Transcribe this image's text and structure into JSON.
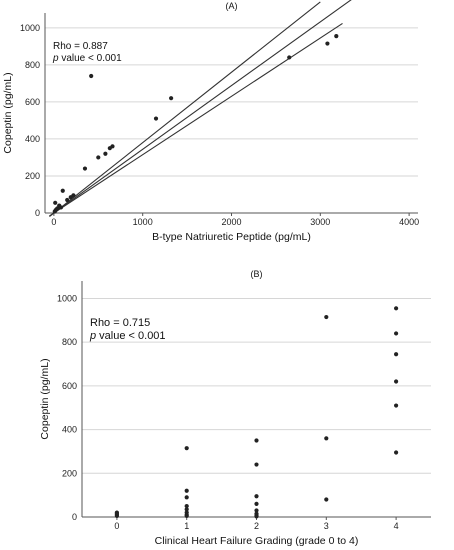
{
  "chart_data": [
    {
      "type": "scatter",
      "panel_label": "(A)",
      "xlabel": "B-type Natriuretic Peptide (pg/mL)",
      "ylabel": "Copeptin  (pg/mL)",
      "xlim": [
        -100,
        4100
      ],
      "ylim": [
        0,
        1080
      ],
      "xticks": [
        0,
        1000,
        2000,
        3000,
        4000
      ],
      "yticks": [
        0,
        200,
        400,
        600,
        800,
        1000
      ],
      "grid": "horizontal",
      "annotation": {
        "rho": "Rho = 0.887",
        "p_italic": "p",
        "p_rest": " value < 0.001"
      },
      "points": [
        {
          "x": 10,
          "y": 8
        },
        {
          "x": 20,
          "y": 15
        },
        {
          "x": 30,
          "y": 20
        },
        {
          "x": 40,
          "y": 25
        },
        {
          "x": 15,
          "y": 55
        },
        {
          "x": 60,
          "y": 40
        },
        {
          "x": 80,
          "y": 30
        },
        {
          "x": 100,
          "y": 120
        },
        {
          "x": 150,
          "y": 70
        },
        {
          "x": 190,
          "y": 85
        },
        {
          "x": 220,
          "y": 95
        },
        {
          "x": 350,
          "y": 240
        },
        {
          "x": 420,
          "y": 740
        },
        {
          "x": 500,
          "y": 300
        },
        {
          "x": 580,
          "y": 320
        },
        {
          "x": 630,
          "y": 350
        },
        {
          "x": 660,
          "y": 360
        },
        {
          "x": 1150,
          "y": 510
        },
        {
          "x": 1320,
          "y": 620
        },
        {
          "x": 2650,
          "y": 840
        },
        {
          "x": 3080,
          "y": 915
        },
        {
          "x": 3180,
          "y": 955
        }
      ],
      "fit": {
        "slope": 0.344,
        "intercept": 0,
        "band_upper_slope": 0.38,
        "band_lower_slope": 0.315,
        "x_start": -50,
        "x_end_mid": 3400,
        "x_end_upper": 3000,
        "x_end_lower": 3250
      }
    },
    {
      "type": "scatter",
      "panel_label": "(B)",
      "xlabel": "Clinical Heart Failure Grading (grade 0 to 4)",
      "ylabel": "Copeptin  (pg/mL)",
      "xlim": [
        -0.5,
        4.5
      ],
      "ylim": [
        0,
        1080
      ],
      "xticks": [
        0,
        1,
        2,
        3,
        4
      ],
      "yticks": [
        0,
        200,
        400,
        600,
        800,
        1000
      ],
      "grid": "horizontal",
      "annotation": {
        "rho": "Rho = 0.715",
        "p_italic": "p",
        "p_rest": " value < 0.001"
      },
      "points": [
        {
          "x": 0,
          "y": 5
        },
        {
          "x": 0,
          "y": 10
        },
        {
          "x": 0,
          "y": 15
        },
        {
          "x": 0,
          "y": 20
        },
        {
          "x": 1,
          "y": 315
        },
        {
          "x": 1,
          "y": 120
        },
        {
          "x": 1,
          "y": 90
        },
        {
          "x": 1,
          "y": 50
        },
        {
          "x": 1,
          "y": 35
        },
        {
          "x": 1,
          "y": 20
        },
        {
          "x": 1,
          "y": 10
        },
        {
          "x": 1,
          "y": 5
        },
        {
          "x": 2,
          "y": 350
        },
        {
          "x": 2,
          "y": 240
        },
        {
          "x": 2,
          "y": 95
        },
        {
          "x": 2,
          "y": 60
        },
        {
          "x": 2,
          "y": 30
        },
        {
          "x": 2,
          "y": 15
        },
        {
          "x": 2,
          "y": 8
        },
        {
          "x": 2,
          "y": 3
        },
        {
          "x": 3,
          "y": 915
        },
        {
          "x": 3,
          "y": 360
        },
        {
          "x": 3,
          "y": 80
        },
        {
          "x": 4,
          "y": 955
        },
        {
          "x": 4,
          "y": 840
        },
        {
          "x": 4,
          "y": 745
        },
        {
          "x": 4,
          "y": 620
        },
        {
          "x": 4,
          "y": 510
        },
        {
          "x": 4,
          "y": 295
        }
      ]
    }
  ]
}
